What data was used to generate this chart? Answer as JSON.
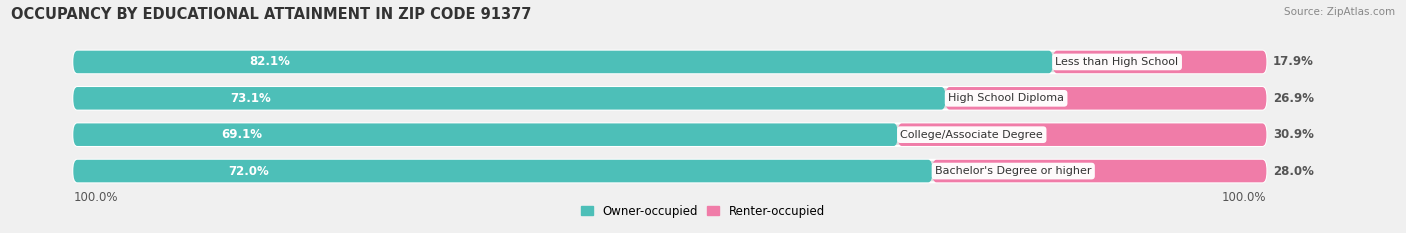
{
  "title": "OCCUPANCY BY EDUCATIONAL ATTAINMENT IN ZIP CODE 91377",
  "source": "Source: ZipAtlas.com",
  "categories": [
    "Less than High School",
    "High School Diploma",
    "College/Associate Degree",
    "Bachelor's Degree or higher"
  ],
  "owner_values": [
    82.1,
    73.1,
    69.1,
    72.0
  ],
  "renter_values": [
    17.9,
    26.9,
    30.9,
    28.0
  ],
  "owner_color": "#4DBFB8",
  "renter_color": "#F07CA8",
  "label_color_owner": "#ffffff",
  "label_color_renter": "#555555",
  "bg_color": "#f0f0f0",
  "bar_bg_color": "#e0e0e0",
  "title_fontsize": 10.5,
  "source_fontsize": 7.5,
  "value_fontsize": 8.5,
  "category_fontsize": 8,
  "legend_fontsize": 8.5,
  "axis_label": "100.0%"
}
